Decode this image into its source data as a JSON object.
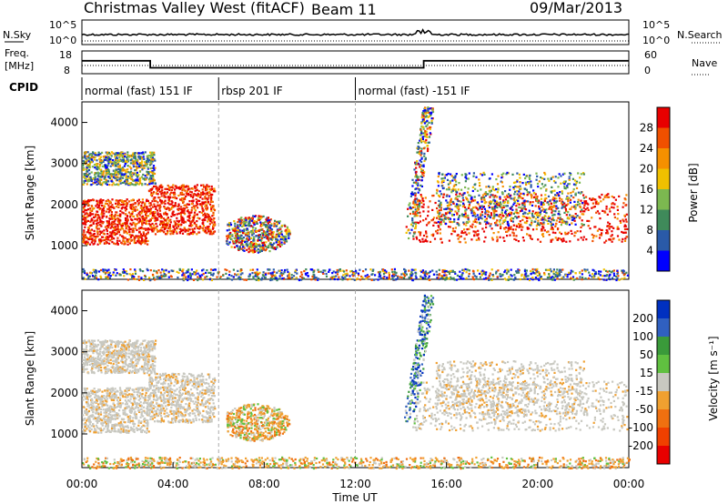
{
  "header": {
    "title": "Christmas Valley West (fitACF)",
    "beam": "Beam 11",
    "date": "09/Mar/2013"
  },
  "nsky_panel": {
    "left_label": "N.Sky",
    "right_label": "N.Search",
    "left_ticks": [
      "10^5",
      "10^0"
    ],
    "right_ticks": [
      "10^5",
      "10^0"
    ]
  },
  "freq_panel": {
    "left_label_line1": "Freq.",
    "left_label_line2": "[MHz]",
    "right_label": "Nave",
    "left_ticks": [
      "18",
      "8"
    ],
    "right_ticks": [
      "60",
      "0"
    ]
  },
  "cpid": {
    "label": "CPID",
    "segments": [
      {
        "label": "normal (fast) 151 IF",
        "start_h": 0,
        "end_h": 6.0
      },
      {
        "label": "rbsp 201 IF",
        "start_h": 6.0,
        "end_h": 12.0
      },
      {
        "label": "normal (fast) -151 IF",
        "start_h": 12.0,
        "end_h": 24.0
      }
    ]
  },
  "x_axis": {
    "label": "Time UT",
    "ticks": [
      "00:00",
      "04:00",
      "08:00",
      "12:00",
      "16:00",
      "20:00",
      "00:00"
    ]
  },
  "power_panel": {
    "ylabel": "Slant Range [km]",
    "yticks": [
      "1000",
      "2000",
      "3000",
      "4000"
    ],
    "colorbar_label": "Power [dB]",
    "colorbar_ticks": [
      "4",
      "8",
      "12",
      "16",
      "20",
      "24",
      "28"
    ],
    "colorbar_colors": [
      "#0000ff",
      "#2a5aa8",
      "#3f8a5a",
      "#7cb850",
      "#f0c000",
      "#f59000",
      "#f05000",
      "#e80000"
    ]
  },
  "velocity_panel": {
    "ylabel": "Slant Range [km]",
    "yticks": [
      "1000",
      "2000",
      "3000",
      "4000"
    ],
    "colorbar_label": "Velocity [m s⁻¹]",
    "colorbar_ticks": [
      "200",
      "100",
      "50",
      "15",
      "-15",
      "-50",
      "-100",
      "-200"
    ],
    "colorbar_colors": [
      "#0030c0",
      "#3060c0",
      "#3a9a3a",
      "#60c040",
      "#c8c8c0",
      "#f0a030",
      "#f07010",
      "#f04000",
      "#e80000"
    ]
  },
  "chart_data": {
    "type": "heatmap",
    "x_range_hours": [
      0,
      24
    ],
    "y_range_km": [
      180,
      4500
    ],
    "scatter_regions": [
      {
        "name": "main-band-early",
        "t": [
          0,
          2.9
        ],
        "r": [
          1050,
          2150
        ],
        "power": "high",
        "velocity": "-15..15"
      },
      {
        "name": "main-band-2",
        "t": [
          2.9,
          5.8
        ],
        "r": [
          1300,
          2500
        ],
        "power": "high",
        "velocity": "-15..15"
      },
      {
        "name": "upper-band-early",
        "t": [
          0,
          3.2
        ],
        "r": [
          2500,
          3300
        ],
        "power": "mid",
        "velocity": "-15..15"
      },
      {
        "name": "morning-patch",
        "t": [
          6.3,
          9.1
        ],
        "r": [
          850,
          1800
        ],
        "power": "mixed",
        "velocity": "-50..15"
      },
      {
        "name": "near-range",
        "t": [
          0,
          24
        ],
        "r": [
          180,
          450
        ],
        "power": "low",
        "velocity": "-50..15"
      },
      {
        "name": "evening-band",
        "t": [
          14.5,
          23.9
        ],
        "r": [
          1100,
          2300
        ],
        "power": "high",
        "velocity": "-15..15"
      },
      {
        "name": "evening-upper",
        "t": [
          15.5,
          22
        ],
        "r": [
          1500,
          2800
        ],
        "power": "mid",
        "velocity": "-15..15"
      },
      {
        "name": "spike",
        "t": [
          14.2,
          15.4
        ],
        "r": [
          1200,
          4400
        ],
        "power": "mixed",
        "velocity": "50..200"
      }
    ],
    "frequency_mhz": [
      {
        "t0": 0,
        "t1": 3.0,
        "value": 14
      },
      {
        "t0": 3.0,
        "t1": 15.0,
        "value": 10.5
      },
      {
        "t0": 15.0,
        "t1": 24,
        "value": 14
      }
    ]
  }
}
